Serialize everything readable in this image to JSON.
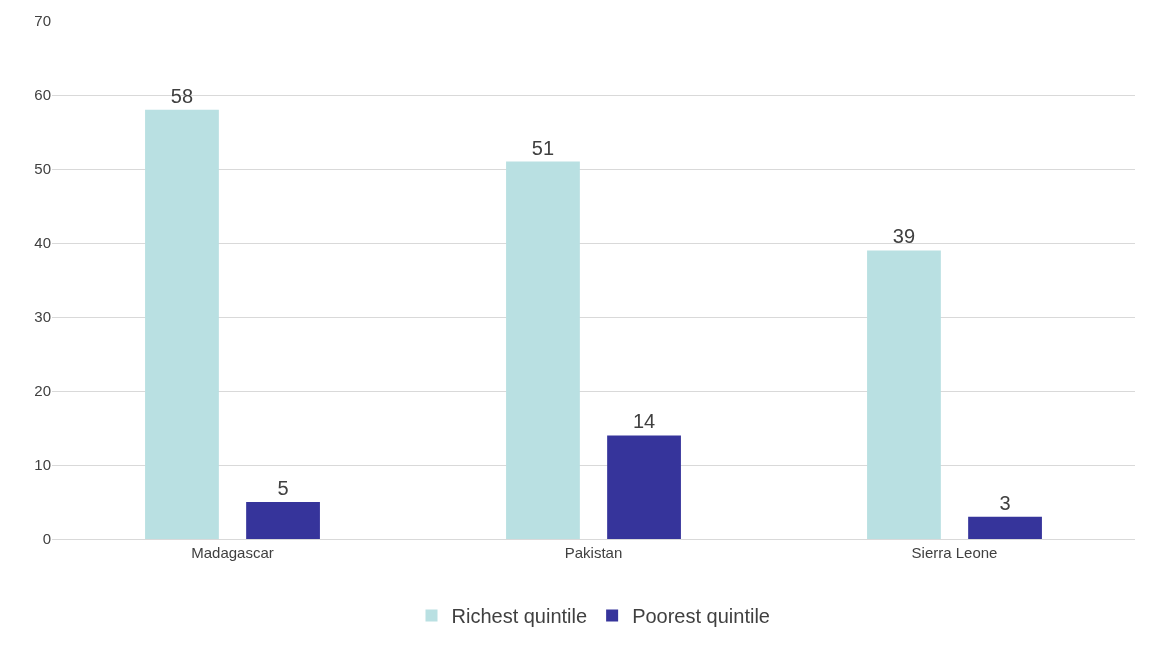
{
  "chart_data": {
    "type": "bar",
    "categories": [
      "Madagascar",
      "Pakistan",
      "Sierra Leone"
    ],
    "series": [
      {
        "name": "Richest quintile",
        "color": "#b9e0e2",
        "values": [
          58,
          51,
          39
        ]
      },
      {
        "name": "Poorest quintile",
        "color": "#36349b",
        "values": [
          5,
          14,
          3
        ]
      }
    ],
    "ylim": [
      0,
      70
    ],
    "yticks": [
      0,
      10,
      20,
      30,
      40,
      50,
      60,
      70
    ],
    "grid": "y",
    "legend": "bottom",
    "data_labels": true
  }
}
